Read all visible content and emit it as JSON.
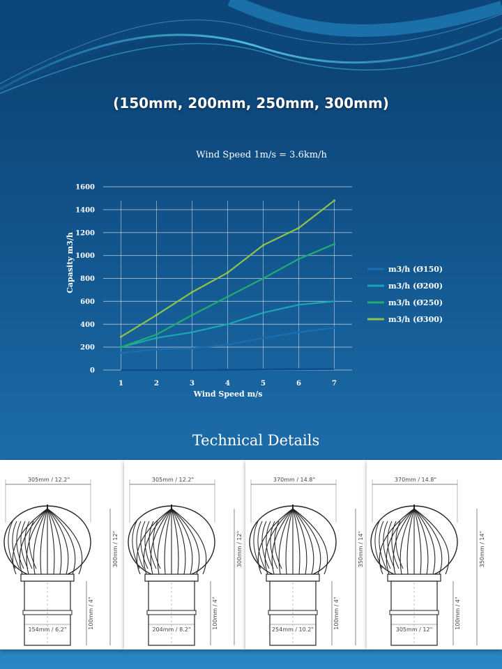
{
  "header": {
    "title": "(150mm, 200mm, 250mm, 300mm)"
  },
  "chart_data": {
    "type": "line",
    "title": "Wind Speed 1m/s = 3.6km/h",
    "xlabel": "Wind Speed m/s",
    "ylabel": "Capasity m3/h",
    "x": [
      1,
      2,
      3,
      4,
      5,
      6,
      7
    ],
    "xticks": [
      "1",
      "2",
      "3",
      "4",
      "5",
      "6",
      "7"
    ],
    "yticks": [
      "0",
      "200",
      "400",
      "600",
      "800",
      "1000",
      "1200",
      "1400",
      "1600"
    ],
    "ylim": [
      0,
      1600
    ],
    "grid": true,
    "legend_position": "right",
    "series": [
      {
        "name": "m3/h  (Ø150)",
        "color": "#1a6fb0",
        "values": [
          150,
          180,
          190,
          220,
          280,
          330,
          370
        ]
      },
      {
        "name": "m3/h  (Ø200)",
        "color": "#1aa7b5",
        "values": [
          200,
          280,
          330,
          400,
          500,
          570,
          600
        ]
      },
      {
        "name": "m3/h  (Ø250)",
        "color": "#1fae6e",
        "values": [
          200,
          310,
          480,
          640,
          800,
          970,
          1100
        ]
      },
      {
        "name": "m3/h  (Ø300)",
        "color": "#8dc34a",
        "values": [
          290,
          480,
          680,
          850,
          1090,
          1240,
          1480
        ]
      }
    ],
    "baseline_series": {
      "color": "#0a4c8c",
      "values": [
        0,
        0,
        0,
        2,
        5,
        7,
        8
      ]
    }
  },
  "technical": {
    "title": "Technical Details",
    "panels": [
      {
        "top_width": "305mm / 12.2\"",
        "height": "300mm / 12\"",
        "neck_height": "100mm / 4\"",
        "base_width": "154mm / 6.2\""
      },
      {
        "top_width": "305mm / 12.2\"",
        "height": "300mm / 12\"",
        "neck_height": "100mm / 4\"",
        "base_width": "204mm / 8.2\""
      },
      {
        "top_width": "370mm / 14.8\"",
        "height": "350mm / 14\"",
        "neck_height": "100mm / 4\"",
        "base_width": "254mm / 10.2\""
      },
      {
        "top_width": "370mm / 14.8\"",
        "height": "350mm / 14\"",
        "neck_height": "100mm / 4\"",
        "base_width": "305mm / 12\""
      }
    ]
  }
}
